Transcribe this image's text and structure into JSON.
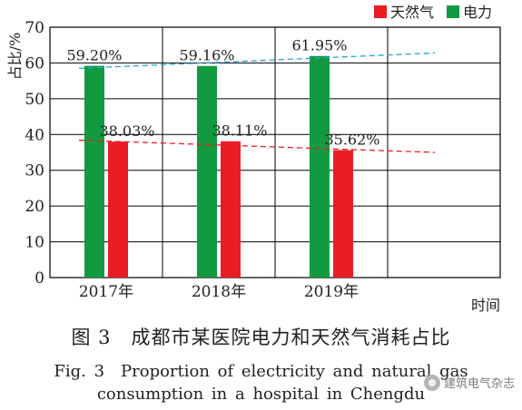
{
  "chart_data": {
    "type": "bar",
    "categories": [
      "2017年",
      "2018年",
      "2019年"
    ],
    "series": [
      {
        "name": "电力",
        "color": "#119a3f",
        "values": [
          59.2,
          59.16,
          61.95
        ],
        "labels": [
          "59.20%",
          "59.16%",
          "61.95%"
        ]
      },
      {
        "name": "天然气",
        "color": "#ea1d25",
        "values": [
          38.03,
          38.11,
          35.62
        ],
        "labels": [
          "38.03%",
          "38.11%",
          "35.62%"
        ]
      }
    ],
    "legend_order": [
      "天然气",
      "电力"
    ],
    "legend_placement": "top-right",
    "ylabel": "占比/%",
    "xlabel": "时间",
    "ylim": [
      0,
      70
    ],
    "yticks": [
      0,
      10,
      20,
      30,
      40,
      50,
      60,
      70
    ],
    "grid": true,
    "extra_empty_category_slot": true,
    "trendlines": [
      {
        "series": "电力",
        "color": "#27a3d8",
        "style": "dashed",
        "from": 58.5,
        "to": 62.8
      },
      {
        "series": "天然气",
        "color": "#ea1d25",
        "style": "dashed",
        "from": 38.4,
        "to": 35.0
      }
    ]
  },
  "caption": {
    "cn": "图 3　成都市某医院电力和天然气消耗占比",
    "en_line1": "Fig. 3　Proportion of electricity and natural gas",
    "en_line2": "consumption in a hospital in Chengdu"
  },
  "watermark": {
    "text": "建筑电气杂志",
    "icon": "wechat-like-icon"
  }
}
